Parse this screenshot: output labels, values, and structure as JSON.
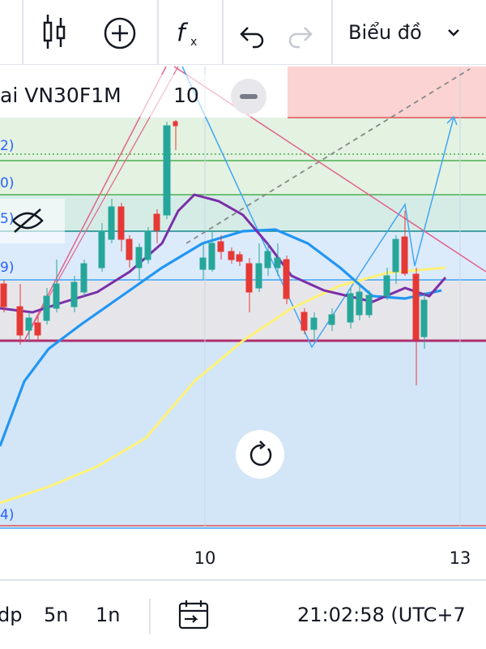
{
  "toolbar": {
    "chart_menu": "Biểu đồ"
  },
  "legend": {
    "symbol": "ai VN30F1M",
    "interval": "10"
  },
  "price_axis_fragments": [
    "2)",
    "0)",
    "5)",
    "9)",
    "4)"
  ],
  "time_axis": [
    "10",
    "13"
  ],
  "bottom_bar": {
    "ranges": [
      "dp",
      "5n",
      "1n"
    ],
    "clock": "21:02:58 (UTC+7"
  }
}
